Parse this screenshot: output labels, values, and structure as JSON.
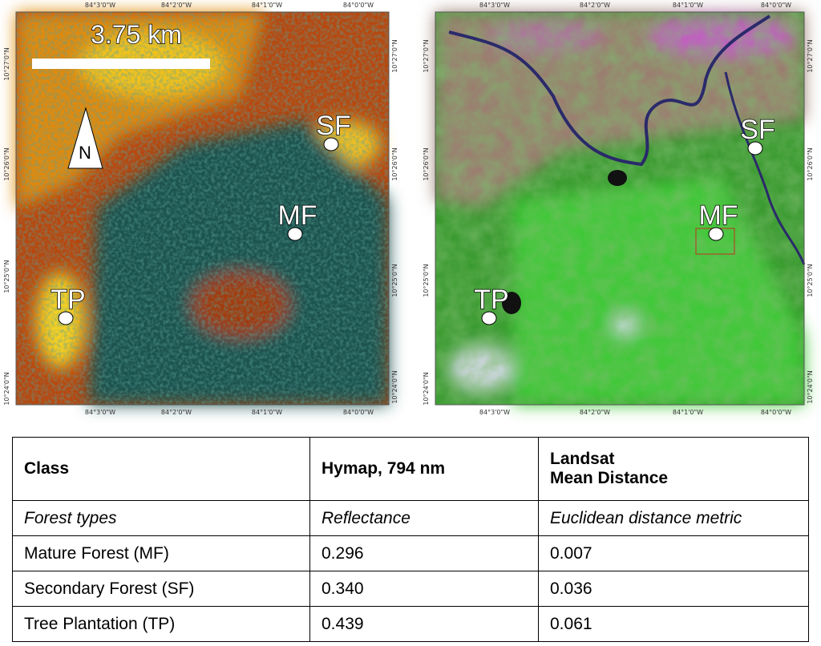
{
  "maps": [
    {
      "x_ticks": [
        "84°3'0\"W",
        "84°2'0\"W",
        "84°1'0\"W",
        "84°0'0\"W"
      ],
      "y_ticks": [
        "10°27'0\"N",
        "10°26'0\"N",
        "10°25'0\"N",
        "10°24'0\"N"
      ],
      "scale_bar": "3.75 km",
      "north": "N",
      "markers": [
        "SF",
        "MF",
        "TP"
      ]
    },
    {
      "x_ticks": [
        "84°3'0\"W",
        "84°2'0\"W",
        "84°1'0\"W",
        "84°0'0\"W"
      ],
      "y_ticks": [
        "10°27'0\"N",
        "10°26'0\"N",
        "10°25'0\"N",
        "10°24'0\"N"
      ],
      "markers": [
        "SF",
        "MF",
        "TP"
      ]
    }
  ],
  "table": {
    "header": [
      "Class",
      "Hymap, 794 nm",
      [
        "Landsat",
        "Mean Distance"
      ]
    ],
    "subheader": [
      "Forest types",
      "Reflectance",
      "Euclidean distance metric"
    ],
    "rows": [
      [
        "Mature Forest (MF)",
        "0.296",
        "0.007"
      ],
      [
        "Secondary Forest (SF)",
        "0.340",
        "0.036"
      ],
      [
        "Tree Plantation (TP)",
        "0.439",
        "0.061"
      ]
    ]
  }
}
